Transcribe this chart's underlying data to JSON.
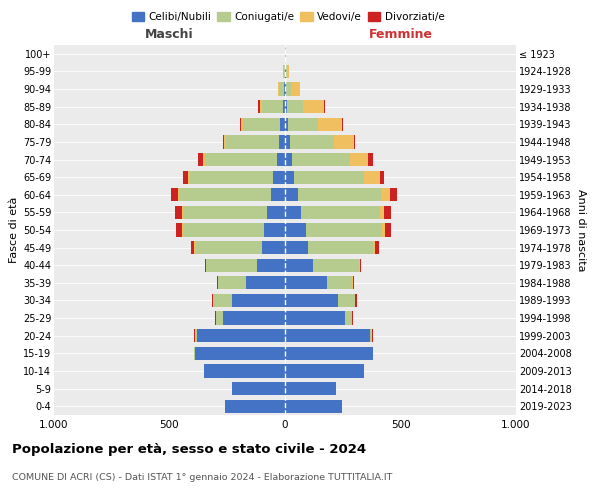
{
  "age_groups": [
    "0-4",
    "5-9",
    "10-14",
    "15-19",
    "20-24",
    "25-29",
    "30-34",
    "35-39",
    "40-44",
    "45-49",
    "50-54",
    "55-59",
    "60-64",
    "65-69",
    "70-74",
    "75-79",
    "80-84",
    "85-89",
    "90-94",
    "95-99",
    "100+"
  ],
  "birth_years": [
    "2019-2023",
    "2014-2018",
    "2009-2013",
    "2004-2008",
    "1999-2003",
    "1994-1998",
    "1989-1993",
    "1984-1988",
    "1979-1983",
    "1974-1978",
    "1969-1973",
    "1964-1968",
    "1959-1963",
    "1954-1958",
    "1949-1953",
    "1944-1948",
    "1939-1943",
    "1934-1938",
    "1929-1933",
    "1924-1928",
    "≤ 1923"
  ],
  "male": {
    "celibi": [
      260,
      230,
      350,
      390,
      380,
      270,
      230,
      170,
      120,
      100,
      90,
      80,
      60,
      50,
      35,
      25,
      20,
      10,
      5,
      2,
      0
    ],
    "coniugati": [
      0,
      0,
      0,
      5,
      10,
      30,
      80,
      120,
      220,
      290,
      350,
      360,
      400,
      360,
      310,
      230,
      160,
      90,
      20,
      5,
      2
    ],
    "vedovi": [
      0,
      0,
      0,
      0,
      0,
      0,
      0,
      0,
      0,
      5,
      5,
      5,
      5,
      10,
      10,
      10,
      10,
      10,
      5,
      0,
      0
    ],
    "divorziati": [
      0,
      0,
      0,
      0,
      5,
      5,
      5,
      5,
      5,
      10,
      25,
      30,
      30,
      20,
      20,
      5,
      5,
      5,
      0,
      0,
      0
    ]
  },
  "female": {
    "nubili": [
      245,
      220,
      340,
      380,
      370,
      260,
      230,
      180,
      120,
      100,
      90,
      70,
      55,
      40,
      30,
      20,
      15,
      10,
      5,
      3,
      0
    ],
    "coniugate": [
      0,
      0,
      0,
      3,
      8,
      28,
      75,
      110,
      200,
      280,
      330,
      340,
      360,
      300,
      250,
      190,
      130,
      70,
      20,
      5,
      2
    ],
    "vedove": [
      0,
      0,
      0,
      0,
      0,
      0,
      0,
      5,
      5,
      10,
      15,
      20,
      40,
      70,
      80,
      90,
      100,
      90,
      40,
      10,
      2
    ],
    "divorziate": [
      0,
      0,
      0,
      0,
      5,
      5,
      5,
      5,
      5,
      15,
      25,
      30,
      30,
      20,
      20,
      5,
      5,
      5,
      0,
      0,
      0
    ]
  },
  "colors": {
    "celibi_nubili": "#4472c4",
    "coniugati": "#b5cc8e",
    "vedovi": "#f0c060",
    "divorziati": "#cc2222"
  },
  "xlim": 1000,
  "title": "Popolazione per età, sesso e stato civile - 2024",
  "subtitle": "COMUNE DI ACRI (CS) - Dati ISTAT 1° gennaio 2024 - Elaborazione TUTTITALIA.IT",
  "xlabel_left": "Maschi",
  "xlabel_right": "Femmine",
  "ylabel_left": "Fasce di età",
  "ylabel_right": "Anni di nascita",
  "plot_bg": "#ebebeb"
}
